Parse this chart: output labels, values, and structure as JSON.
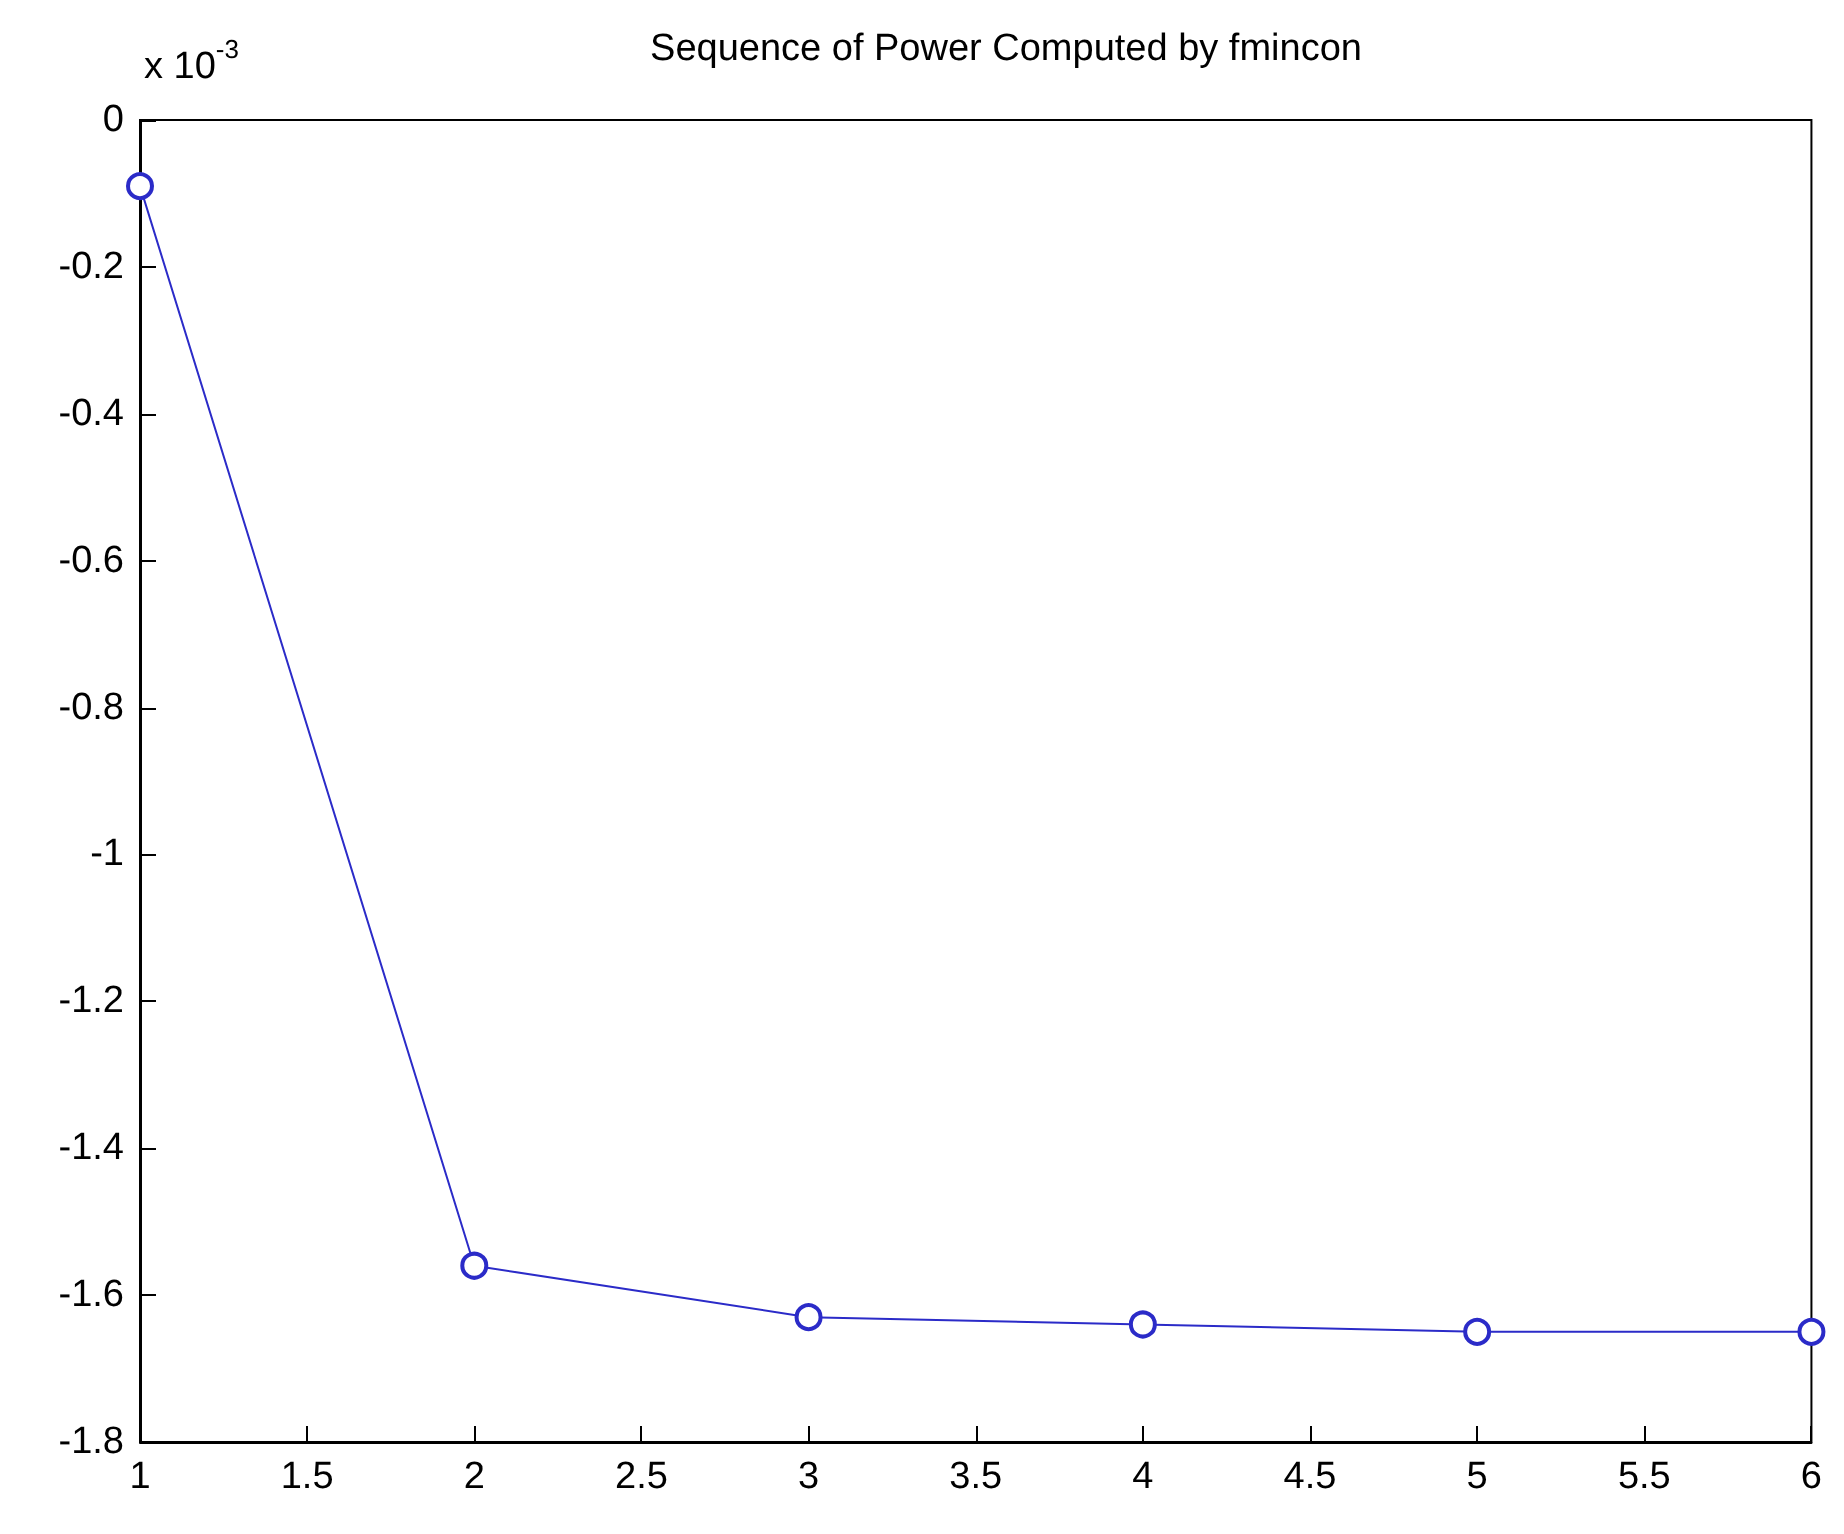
{
  "chart_data": {
    "type": "line",
    "title": "Sequence of Power Computed by fmincon",
    "x": [
      1,
      2,
      3,
      4,
      5,
      6
    ],
    "series": [
      {
        "color": "#2b2bc8",
        "values": [
          -0.09,
          -1.56,
          -1.63,
          -1.64,
          -1.65,
          -1.65
        ]
      }
    ],
    "xlim": [
      1,
      6
    ],
    "xticks": [
      1,
      1.5,
      2,
      2.5,
      3,
      3.5,
      4,
      4.5,
      5,
      5.5,
      6
    ],
    "ylim": [
      -1.8,
      0
    ],
    "yticks": [
      -1.8,
      -1.6,
      -1.4,
      -1.2,
      -1,
      -0.8,
      -0.6,
      -0.4,
      -0.2,
      0
    ],
    "annotations": [
      "x 10$^{-3}$"
    ],
    "marker": "circle",
    "line_style": "solid"
  }
}
